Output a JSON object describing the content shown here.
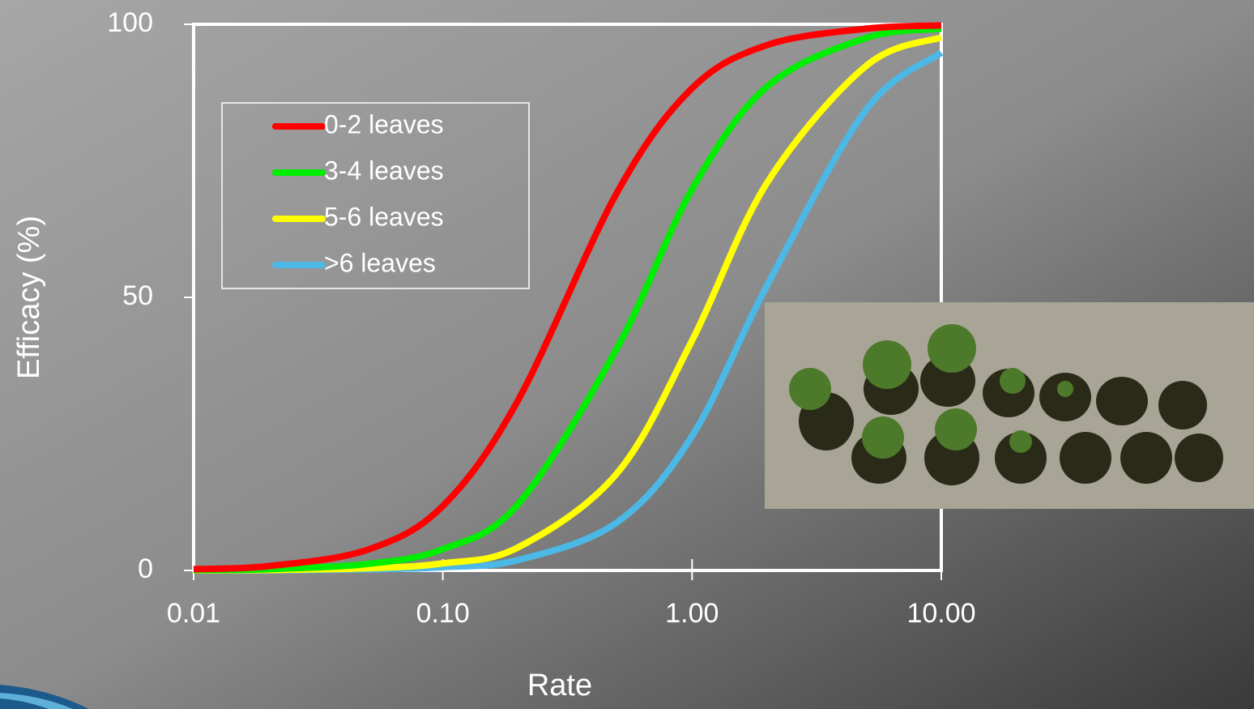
{
  "chart_data": {
    "type": "line",
    "x_label": "Rate",
    "y_label": "Efficacy (%)",
    "x": [
      0.01,
      0.02,
      0.05,
      0.1,
      0.2,
      0.5,
      1,
      2,
      5,
      10
    ],
    "series": [
      {
        "name": "0-2 leaves",
        "color": "#ff0000",
        "values": [
          0.24,
          0.8,
          3.8,
          11.8,
          31.1,
          69.2,
          88.3,
          96.2,
          99.2,
          99.8
        ]
      },
      {
        "name": "3-4 leaves",
        "color": "#00ee00",
        "values": [
          0.07,
          0.25,
          1.2,
          3.9,
          12.1,
          40.7,
          69.8,
          88.6,
          97.5,
          99.2
        ]
      },
      {
        "name": "5-6 leaves",
        "color": "#ffff00",
        "values": [
          0.02,
          0.08,
          0.4,
          1.3,
          4.2,
          17.8,
          42.1,
          71.0,
          92.4,
          97.6
        ]
      },
      {
        "name": ">6 leaves",
        "color": "#4cb8e6",
        "values": [
          0.01,
          0.03,
          0.2,
          0.6,
          1.9,
          8.8,
          24.6,
          52.2,
          84.4,
          94.8
        ]
      }
    ],
    "xscale": "log",
    "xlim": [
      0.01,
      10
    ],
    "xticks": [
      0.01,
      {
        "value": 0.1,
        "label": "0.10"
      },
      {
        "value": 1,
        "label": "1.00"
      },
      {
        "value": 10,
        "label": "10.00"
      }
    ],
    "ylim": [
      0,
      100
    ],
    "yticks": [
      0,
      50,
      100
    ],
    "legend": "upper-left"
  }
}
